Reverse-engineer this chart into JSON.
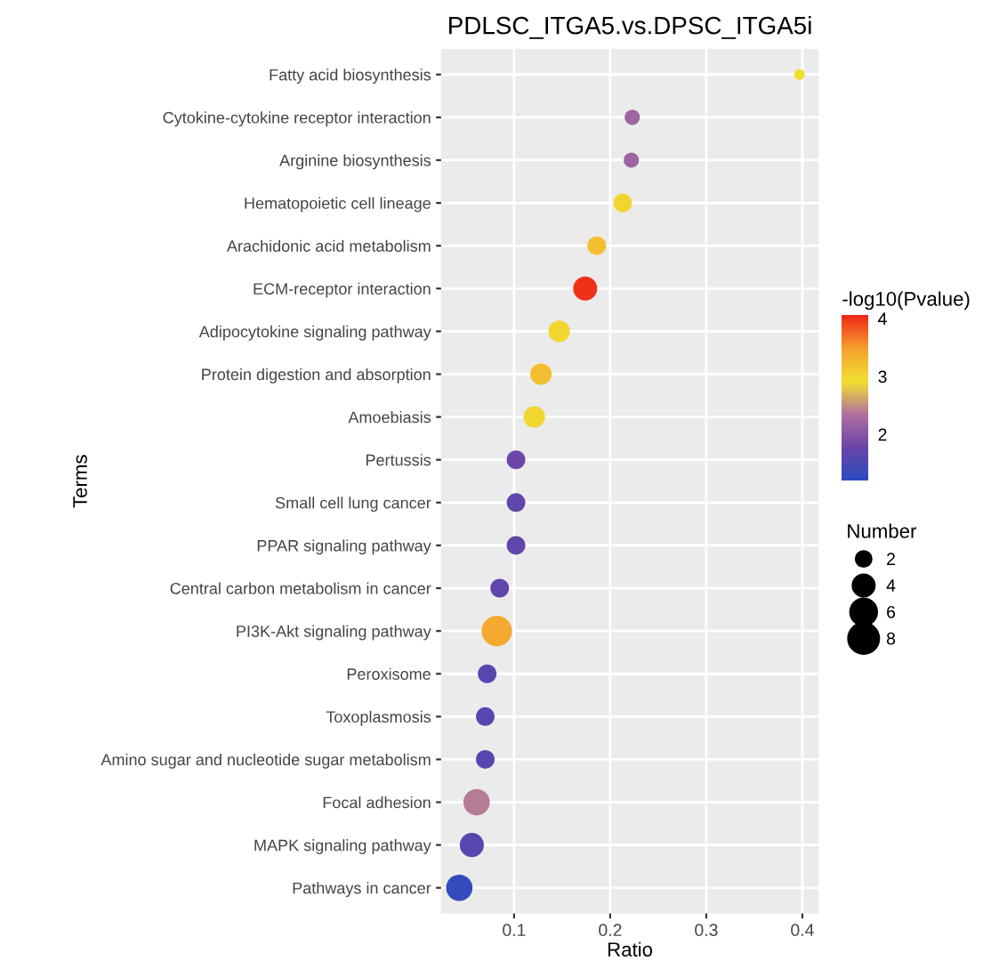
{
  "chart_data": {
    "type": "bubble",
    "title": "PDLSC_ITGA5.vs.DPSC_ITGA5i",
    "xlabel": "Ratio",
    "ylabel": "Terms",
    "orientation": "horizontal",
    "categories": [
      "Fatty acid biosynthesis",
      "Cytokine-cytokine receptor interaction",
      "Arginine biosynthesis",
      "Hematopoietic cell lineage",
      "Arachidonic acid metabolism",
      "ECM-receptor interaction",
      "Adipocytokine signaling pathway",
      "Protein digestion and absorption",
      "Amoebiasis",
      "Pertussis",
      "Small cell lung cancer",
      "PPAR signaling pathway",
      "Central carbon metabolism in cancer",
      "PI3K-Akt signaling pathway",
      "Peroxisome",
      "Toxoplasmosis",
      "Amino sugar and nucleotide sugar metabolism",
      "Focal adhesion",
      "MAPK signaling pathway",
      "Pathways in cancer"
    ],
    "values": [
      0.397,
      0.223,
      0.222,
      0.213,
      0.186,
      0.174,
      0.147,
      0.128,
      0.121,
      0.102,
      0.102,
      0.102,
      0.085,
      0.082,
      0.072,
      0.07,
      0.07,
      0.061,
      0.056,
      0.043
    ],
    "sizes": [
      1,
      2,
      2,
      3,
      3,
      5,
      4,
      4,
      4,
      3,
      3,
      3,
      3,
      8,
      3,
      3,
      3,
      6,
      5,
      6
    ],
    "cvalues": [
      2.9,
      2.2,
      2.2,
      3.0,
      3.2,
      4.0,
      3.0,
      3.2,
      3.0,
      1.8,
      1.7,
      1.7,
      1.7,
      3.4,
      1.6,
      1.6,
      1.6,
      2.4,
      1.6,
      1.3
    ],
    "size_legend": [
      2,
      4,
      6,
      8
    ],
    "legend_title": "Number",
    "clabel": "-log10(Pvalue)",
    "clim": [
      1.2,
      4.05
    ],
    "cticks": [
      2,
      3,
      4
    ],
    "xlim": [
      0.024,
      0.417
    ],
    "xticks": [
      0.1,
      0.2,
      0.3,
      0.4
    ],
    "grid": true
  }
}
